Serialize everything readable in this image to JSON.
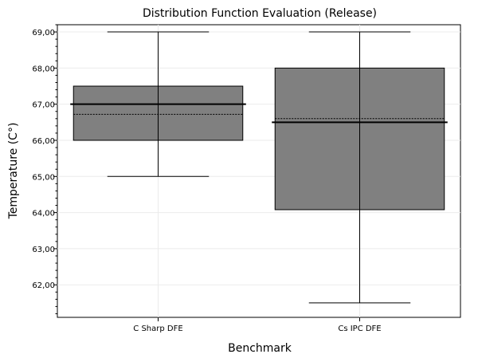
{
  "chart_data": {
    "type": "box",
    "title": "Distribution Function Evaluation (Release)",
    "xlabel": "Benchmark",
    "ylabel": "Temperature (C°)",
    "categories": [
      "C Sharp DFE",
      "Cs IPC DFE"
    ],
    "ylim": [
      61.1,
      69.2
    ],
    "yticks": [
      62,
      63,
      64,
      65,
      66,
      67,
      68,
      69
    ],
    "ytick_labels": [
      "62,00",
      "63,00",
      "64,00",
      "65,00",
      "66,00",
      "67,00",
      "68,00",
      "69,00"
    ],
    "grid": true,
    "boxes": [
      {
        "category": "C Sharp DFE",
        "whisker_low": 65.0,
        "q1": 66.0,
        "median": 67.0,
        "mean": 66.72,
        "q3": 67.5,
        "whisker_high": 69.0
      },
      {
        "category": "Cs IPC DFE",
        "whisker_low": 61.5,
        "q1": 64.08,
        "median": 66.5,
        "mean": 66.6,
        "q3": 68.0,
        "whisker_high": 69.0
      }
    ],
    "colors": {
      "box_fill": "#808080",
      "box_edge": "#000000",
      "grid": "#ebebeb"
    }
  }
}
